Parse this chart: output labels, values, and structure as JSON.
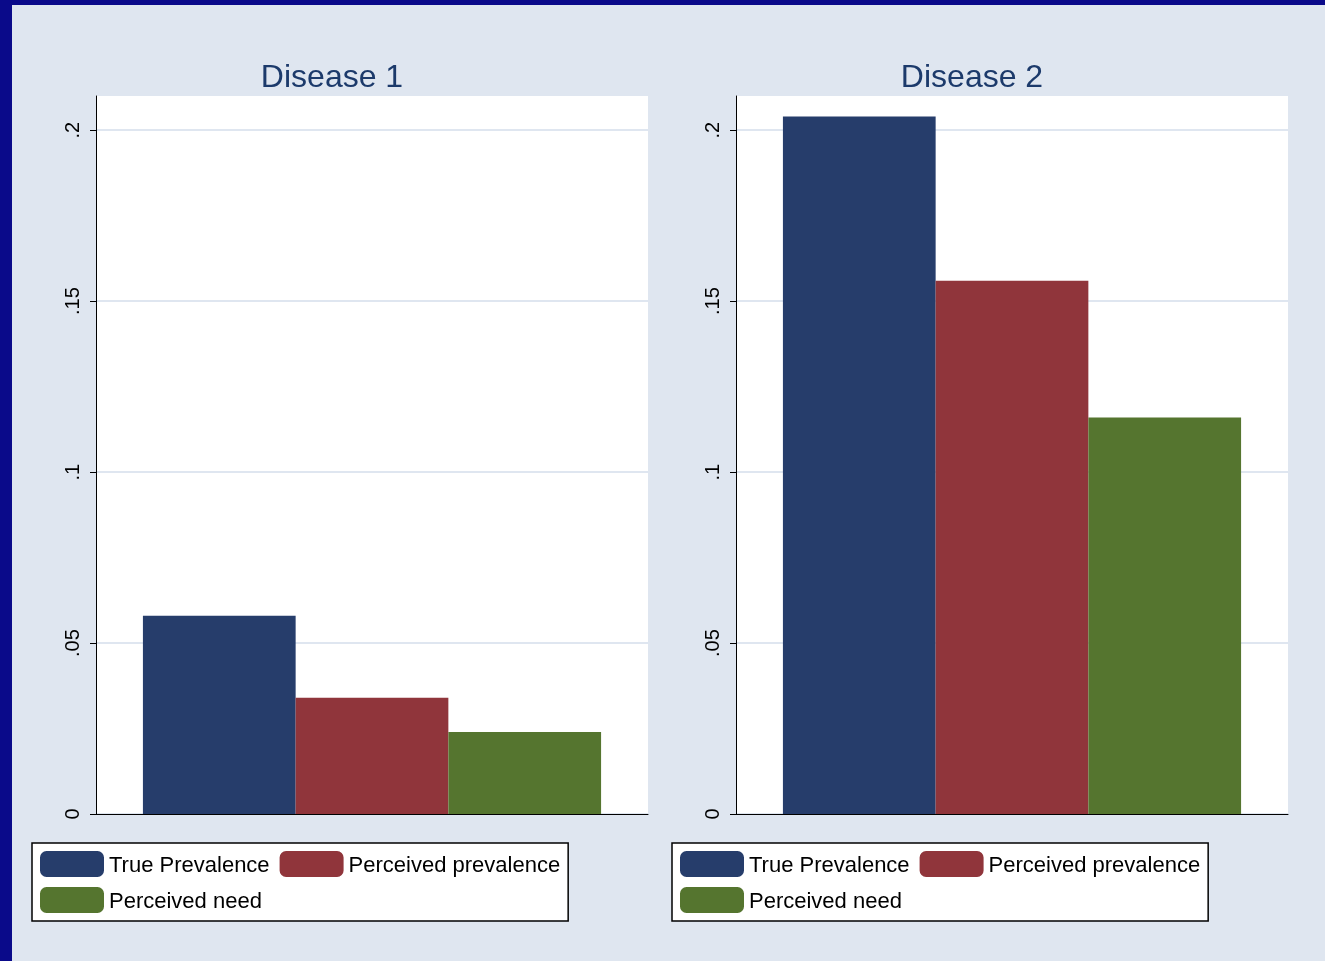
{
  "chart_data": [
    {
      "type": "bar",
      "title": "Disease 1",
      "categories": [
        null
      ],
      "series": [
        {
          "name": "True Prevalence",
          "color": "#263d6b",
          "values": [
            0.058
          ]
        },
        {
          "name": "Perceived prevalence",
          "color": "#90353b",
          "values": [
            0.034
          ]
        },
        {
          "name": "Perceived need",
          "color": "#55752f",
          "values": [
            0.024
          ]
        }
      ],
      "ylim": [
        0,
        0.21
      ],
      "yticks": [
        0,
        {
          "value": 0.05,
          "label": ".05"
        },
        {
          "value": 0.1,
          "label": ".1"
        },
        {
          "value": 0.15,
          "label": ".15"
        },
        {
          "value": 0.2,
          "label": ".2"
        }
      ],
      "grid": "y",
      "legend": "bottom"
    },
    {
      "type": "bar",
      "title": "Disease 2",
      "categories": [
        null
      ],
      "series": [
        {
          "name": "True Prevalence",
          "color": "#263d6b",
          "values": [
            0.204
          ]
        },
        {
          "name": "Perceived prevalence",
          "color": "#90353b",
          "values": [
            0.156
          ]
        },
        {
          "name": "Perceived need",
          "color": "#55752f",
          "values": [
            0.116
          ]
        }
      ],
      "ylim": [
        0,
        0.21
      ],
      "yticks": [
        0,
        {
          "value": 0.05,
          "label": ".05"
        },
        {
          "value": 0.1,
          "label": ".1"
        },
        {
          "value": 0.15,
          "label": ".15"
        },
        {
          "value": 0.2,
          "label": ".2"
        }
      ],
      "grid": "y",
      "legend": "bottom"
    }
  ]
}
